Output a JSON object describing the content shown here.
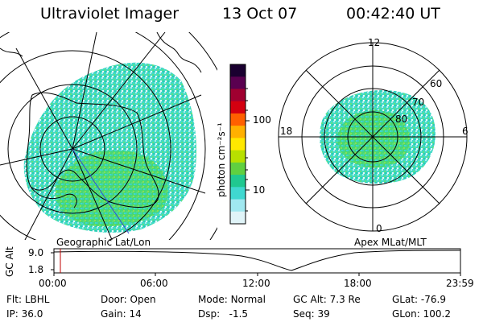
{
  "header": {
    "instrument": "Ultraviolet Imager",
    "date": "13 Oct 07",
    "time": "00:42:40 UT"
  },
  "left_map": {
    "caption": "Geographic Lat/Lon"
  },
  "right_map": {
    "caption": "Apex MLat/MLT",
    "mlt_labels": [
      "12",
      "18",
      "6",
      "0"
    ],
    "lat_labels": [
      "60",
      "70",
      "80"
    ]
  },
  "colorbar": {
    "units": "photon cm⁻²s⁻¹",
    "ticks": [
      "100",
      "10"
    ],
    "colors": [
      "#1a0030",
      "#5a0050",
      "#a00030",
      "#d40010",
      "#ff6000",
      "#ffb000",
      "#ffe800",
      "#b8e000",
      "#60d040",
      "#20c890",
      "#40d8d0",
      "#a0e8f0",
      "#e0f4f8"
    ]
  },
  "altitude_plot": {
    "ylabel": "GC Alt",
    "yticks": [
      "9.0",
      "1.8"
    ],
    "xticks": [
      "00:00",
      "06:00",
      "12:00",
      "18:00",
      "23:59"
    ],
    "cursor_time": "00:42:40"
  },
  "status": {
    "row1": [
      {
        "label": "Flt:",
        "value": "LBHL"
      },
      {
        "label": "Door:",
        "value": "Open"
      },
      {
        "label": "Mode:",
        "value": "Normal"
      },
      {
        "label": "GC Alt:",
        "value": "7.3 Re"
      },
      {
        "label": "GLat:",
        "value": "-76.9"
      }
    ],
    "row2": [
      {
        "label": "IP:",
        "value": "36.0"
      },
      {
        "label": "Gain:",
        "value": "14"
      },
      {
        "label": "Dsp:",
        "value": "  -1.5"
      },
      {
        "label": "Seq:",
        "value": "39"
      },
      {
        "label": "GLon:",
        "value": "100.2"
      }
    ]
  }
}
